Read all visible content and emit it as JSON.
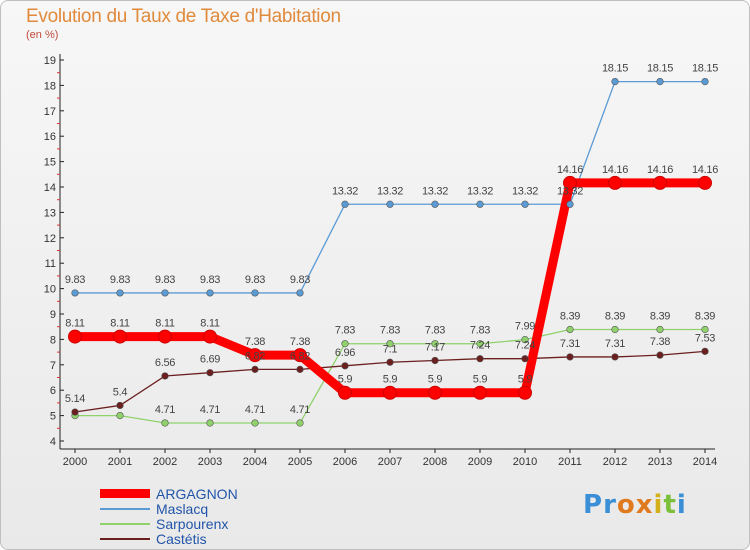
{
  "title": "Evolution du Taux de Taxe d'Habitation",
  "subtitle": "(en %)",
  "logo": {
    "letters": [
      "P",
      "r",
      "o",
      "x",
      "i",
      "t",
      "i"
    ],
    "colors": [
      "#3a8fd6",
      "#3a8fd6",
      "#e07a1e",
      "#e07a1e",
      "#d4b01c",
      "#7cbf3a",
      "#3a8fd6"
    ]
  },
  "chart_data": {
    "type": "line",
    "x": [
      "2000",
      "2001",
      "2002",
      "2003",
      "2004",
      "2005",
      "2006",
      "2007",
      "2008",
      "2009",
      "2010",
      "2011",
      "2012",
      "2013",
      "2014"
    ],
    "ylim": [
      4,
      19
    ],
    "yticks": [
      "4",
      "5",
      "6",
      "7",
      "8",
      "9",
      "10",
      "11",
      "12",
      "13",
      "14",
      "15",
      "16",
      "17",
      "18",
      "19"
    ],
    "grid": false,
    "legend": "bottom-left",
    "series": [
      {
        "name": "ARGAGNON",
        "color": "#ff0000",
        "values": [
          8.11,
          8.11,
          8.11,
          8.11,
          7.38,
          7.38,
          5.9,
          5.9,
          5.9,
          5.9,
          5.9,
          14.16,
          14.16,
          14.16,
          14.16
        ],
        "labels": [
          "8.11",
          "8.11",
          "8.11",
          "8.11",
          "7.38",
          "7.38",
          "5.9",
          "5.9",
          "5.9",
          "5.9",
          "5.9",
          "14.16",
          "14.16",
          "14.16",
          "14.16"
        ]
      },
      {
        "name": "Maslacq",
        "color": "#5b9bd5",
        "values": [
          9.83,
          9.83,
          9.83,
          9.83,
          9.83,
          9.83,
          13.32,
          13.32,
          13.32,
          13.32,
          13.32,
          13.32,
          18.15,
          18.15,
          18.15
        ],
        "labels": [
          "9.83",
          "9.83",
          "9.83",
          "9.83",
          "9.83",
          "9.83",
          "13.32",
          "13.32",
          "13.32",
          "13.32",
          "13.32",
          "13.32",
          "18.15",
          "18.15",
          "18.15"
        ]
      },
      {
        "name": "Sarpourenx",
        "color": "#8fd16b",
        "values": [
          5.0,
          5.0,
          4.71,
          4.71,
          4.71,
          4.71,
          7.83,
          7.83,
          7.83,
          7.83,
          7.99,
          8.39,
          8.39,
          8.39,
          8.39
        ],
        "labels": [
          "",
          "",
          "4.71",
          "4.71",
          "4.71",
          "4.71",
          "7.83",
          "7.83",
          "7.83",
          "7.83",
          "7.99",
          "8.39",
          "8.39",
          "8.39",
          "8.39"
        ]
      },
      {
        "name": "Castétis",
        "color": "#6b1f1f",
        "values": [
          5.14,
          5.4,
          6.56,
          6.69,
          6.82,
          6.82,
          6.96,
          7.1,
          7.17,
          7.24,
          7.24,
          7.31,
          7.31,
          7.38,
          7.53
        ],
        "labels": [
          "5.14",
          "5.4",
          "6.56",
          "6.69",
          "6.82",
          "6.82",
          "6.96",
          "7.1",
          "7.17",
          "7.24",
          "7.24",
          "7.31",
          "7.31",
          "7.38",
          "7.53"
        ]
      }
    ]
  }
}
